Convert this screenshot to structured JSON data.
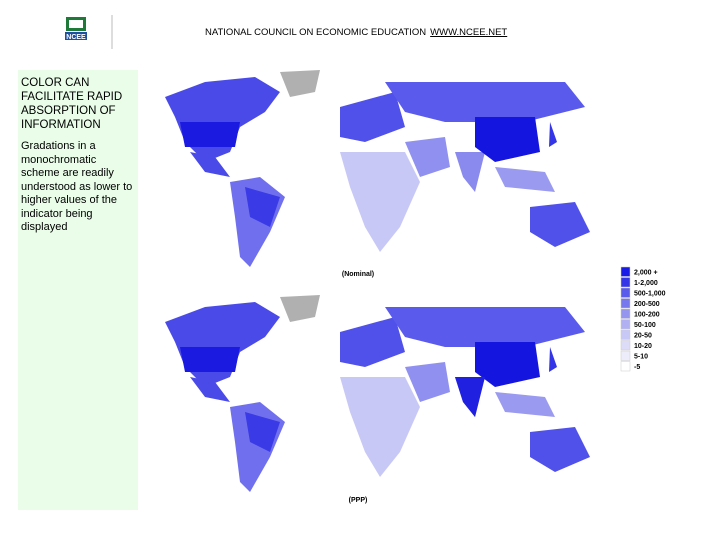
{
  "header": {
    "logo_text": "NCEE",
    "organization": "NATIONAL COUNCIL ON ECONOMIC EDUCATION",
    "link": "WWW.NCEE.NET"
  },
  "sidebar": {
    "title": "COLOR CAN FACILITATE RAPID ABSORPTION OF INFORMATION",
    "body": "Gradations in a monochromatic scheme are readily understood as lower to higher values of the indicator being displayed"
  },
  "maps": [
    {
      "caption": "(Nominal)"
    },
    {
      "caption": "(PPP)"
    }
  ],
  "legend": {
    "items": [
      {
        "label": "2,000 +",
        "color": "#1a1ae6"
      },
      {
        "label": "1-2,000",
        "color": "#3535e8"
      },
      {
        "label": "500-1,000",
        "color": "#5a5aeb"
      },
      {
        "label": "200-500",
        "color": "#7777ee"
      },
      {
        "label": "100-200",
        "color": "#9595f0"
      },
      {
        "label": "50-100",
        "color": "#b0b0f3"
      },
      {
        "label": "20-50",
        "color": "#c8c8f6"
      },
      {
        "label": "10-20",
        "color": "#dcdcf8"
      },
      {
        "label": "5-10",
        "color": "#ececfb"
      },
      {
        "label": "-5",
        "color": "#ffffff"
      }
    ]
  }
}
